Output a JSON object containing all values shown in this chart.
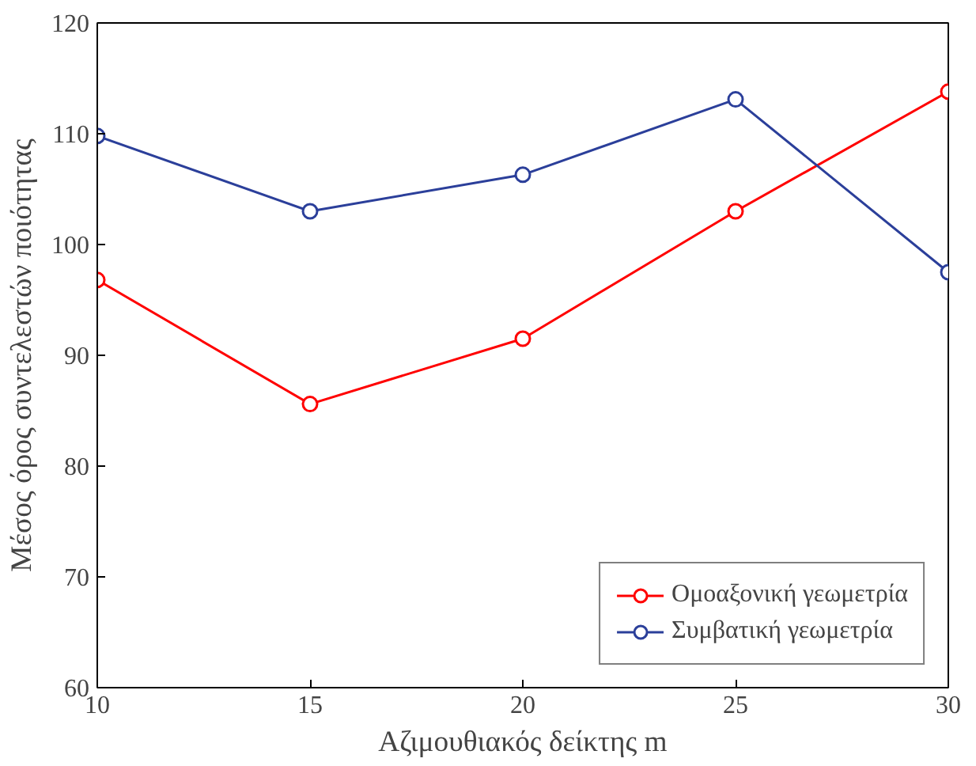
{
  "chart_data": {
    "type": "line",
    "xlabel": "Αζιμουθιακός δείκτης m",
    "ylabel": "Μέσος όρος συντελεστών ποιότητας",
    "x": [
      10,
      15,
      20,
      25,
      30
    ],
    "series": [
      {
        "name": "Ομοαξονική γεωμετρία",
        "color": "#ff0000",
        "values": [
          96.8,
          85.6,
          91.5,
          103,
          113.8
        ]
      },
      {
        "name": "Συμβατική γεωμετρία",
        "color": "#2b3f9a",
        "values": [
          109.8,
          103,
          106.3,
          113.1,
          97.5
        ]
      }
    ],
    "xlim": [
      10,
      30
    ],
    "ylim": [
      60,
      120
    ],
    "xticks": [
      10,
      15,
      20,
      25,
      30
    ],
    "yticks": [
      60,
      70,
      80,
      90,
      100,
      110,
      120
    ],
    "grid": false,
    "legend": "bottom right",
    "marker": "circle",
    "line_style": "solid"
  }
}
